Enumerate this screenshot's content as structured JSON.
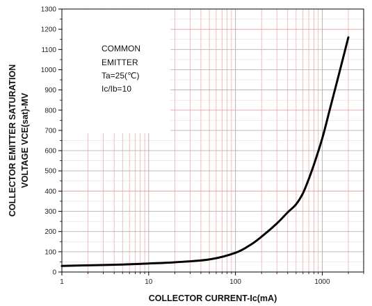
{
  "chart_data": {
    "type": "line",
    "title": "",
    "xlabel": "COLLECTOR CURRENT-Ic(mA)",
    "ylabel_lines": [
      "COLLECTOR EMITTER SATURATION",
      "VOLTAGE VCE(sat)-MV"
    ],
    "x_scale": "log",
    "xlim": [
      1,
      3000
    ],
    "ylim": [
      0,
      1300
    ],
    "x_ticks": [
      {
        "value": 1,
        "label": "1"
      },
      {
        "value": 10,
        "label": "10"
      },
      {
        "value": 100,
        "label": "100"
      },
      {
        "value": 1000,
        "label": "1000"
      }
    ],
    "y_ticks": [
      0,
      100,
      200,
      300,
      400,
      500,
      600,
      700,
      800,
      900,
      1000,
      1100,
      1200,
      1300
    ],
    "grid": true,
    "annotation": [
      "COMMON",
      "EMITTER",
      "Ta=25(℃)",
      "Ic/Ib=10"
    ],
    "series": [
      {
        "x": [
          1,
          2,
          5,
          10,
          20,
          50,
          100,
          150,
          200,
          300,
          400,
          500,
          600,
          700,
          800,
          1000,
          1200,
          1500,
          2000
        ],
        "y": [
          30,
          33,
          37,
          42,
          48,
          62,
          95,
          135,
          175,
          240,
          295,
          335,
          390,
          460,
          530,
          660,
          790,
          950,
          1160
        ]
      }
    ],
    "colors": {
      "line": "#000000",
      "grid_red": "#e8a0a0",
      "grid_gray": "#b4b4b4"
    }
  }
}
